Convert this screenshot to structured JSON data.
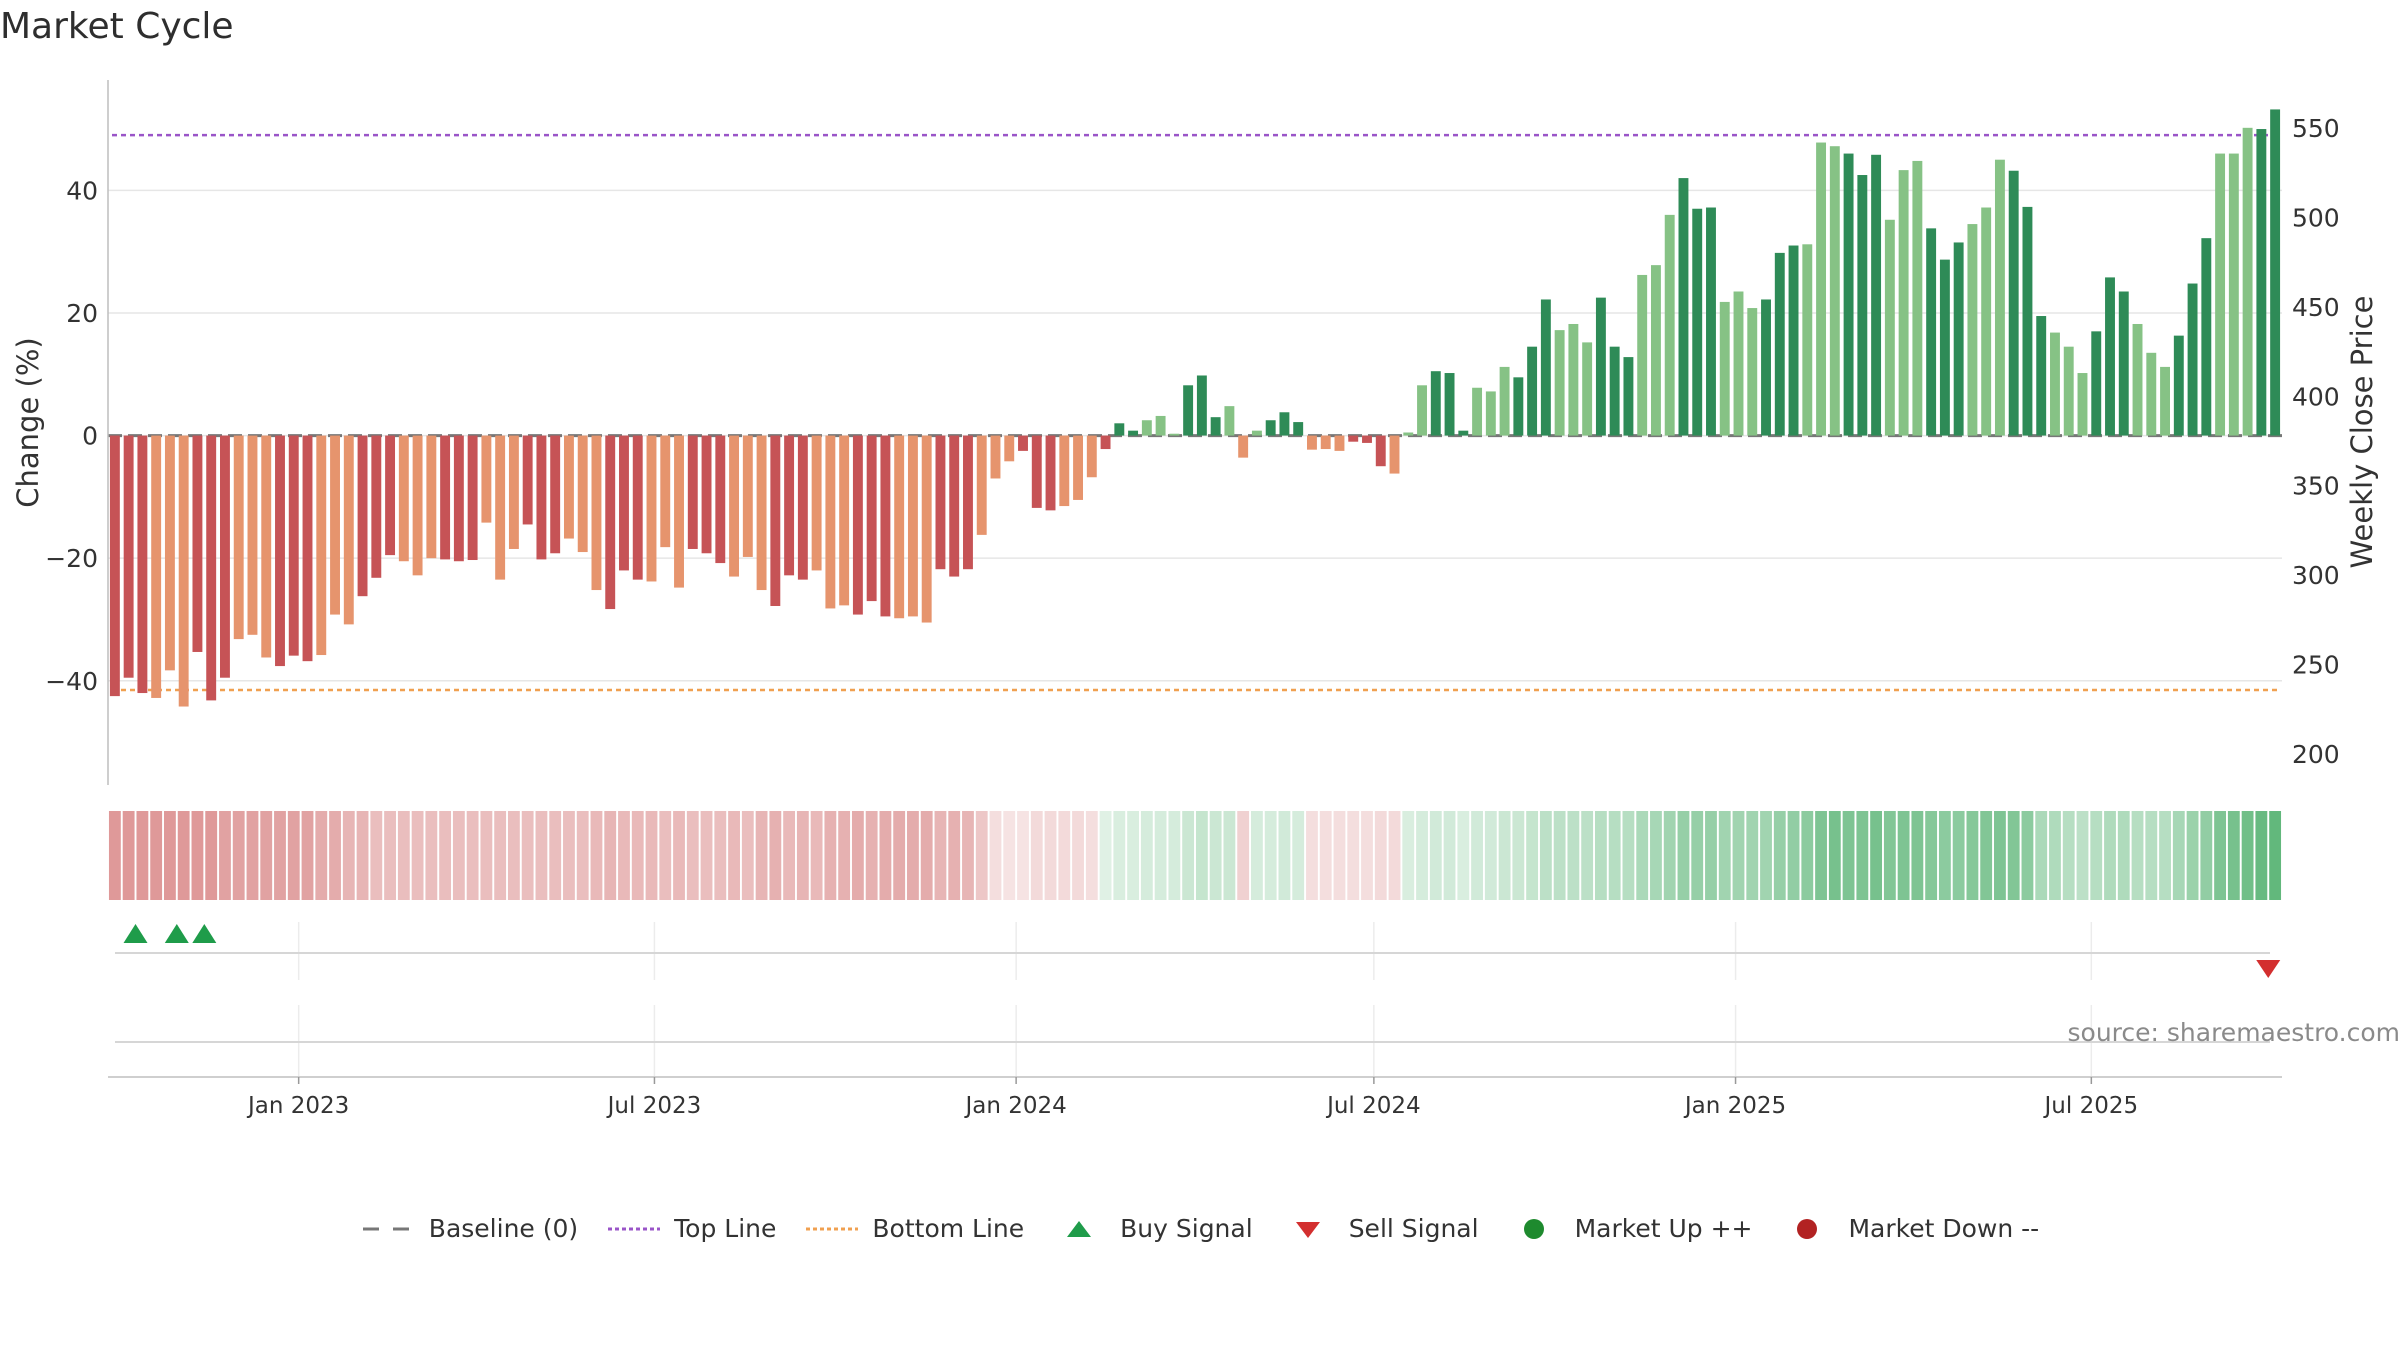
{
  "title": "Market Cycle",
  "source": "source: sharemaestro.com",
  "colors": {
    "red_dark": "#c65356",
    "red_light": "#e6946d",
    "green_dark": "#2e8b57",
    "green_light": "#86c285",
    "top_line": "#9a55c8",
    "bottom_line": "#f0a050",
    "baseline": "#777777",
    "buy": "#1f9c4a",
    "sell": "#d32f2f",
    "market_up": "#1e8a2e",
    "market_down": "#b22222"
  },
  "legend": [
    {
      "label": "Baseline (0)",
      "icon": "dash-line-icon"
    },
    {
      "label": "Top Line",
      "icon": "dotted-purple-line-icon"
    },
    {
      "label": "Bottom Line",
      "icon": "dotted-orange-line-icon"
    },
    {
      "label": "Buy Signal",
      "icon": "triangle-up-icon"
    },
    {
      "label": "Sell Signal",
      "icon": "triangle-down-icon"
    },
    {
      "label": "Market Up ++",
      "icon": "green-dot-icon"
    },
    {
      "label": "Market Down --",
      "icon": "red-dot-icon"
    }
  ],
  "chart_data": {
    "type": "bar",
    "xlabel": "",
    "ylabel": "Change (%)",
    "y2label": "Weekly Close Price",
    "ylim": [
      -57,
      58
    ],
    "y2lim": [
      200,
      550
    ],
    "yticks": [
      -40,
      -20,
      0,
      20,
      40
    ],
    "y2ticks": [
      200,
      250,
      300,
      350,
      400,
      450,
      500,
      550
    ],
    "x_start": "2022-09-26",
    "x_end": "2025-10-06",
    "xticks": [
      {
        "date": "2023-01-01",
        "label": "Jan 2023"
      },
      {
        "date": "2023-07-01",
        "label": "Jul 2023"
      },
      {
        "date": "2024-01-01",
        "label": "Jan 2024"
      },
      {
        "date": "2024-07-01",
        "label": "Jul 2024"
      },
      {
        "date": "2025-01-01",
        "label": "Jan 2025"
      },
      {
        "date": "2025-07-01",
        "label": "Jul 2025"
      }
    ],
    "top_line": 49,
    "bottom_line": -41.5,
    "grid": true,
    "legend_position": "bottom",
    "values": [
      -42.5,
      -39.5,
      -42,
      -42.8,
      -38.3,
      -44.2,
      -35.3,
      -43.2,
      -39.5,
      -33.2,
      -32.5,
      -36.2,
      -37.6,
      -35.9,
      -36.8,
      -35.8,
      -29.2,
      -30.8,
      -26.2,
      -23.2,
      -19.5,
      -20.5,
      -22.8,
      -20,
      -20.2,
      -20.5,
      -20.3,
      -14.2,
      -23.5,
      -18.5,
      -14.5,
      -20.2,
      -19.2,
      -16.8,
      -19,
      -25.2,
      -28.3,
      -22,
      -23.5,
      -23.8,
      -18.2,
      -24.8,
      -18.5,
      -19.2,
      -20.8,
      -23,
      -19.8,
      -25.2,
      -27.8,
      -22.8,
      -23.5,
      -22,
      -28.2,
      -27.7,
      -29.2,
      -27,
      -29.5,
      -29.8,
      -29.5,
      -30.5,
      -21.8,
      -23,
      -21.8,
      -16.2,
      -7,
      -4.2,
      -2.5,
      -11.8,
      -12.2,
      -11.5,
      -10.5,
      -6.8,
      -2.2,
      2,
      0.8,
      2.5,
      3.2,
      0.3,
      8.2,
      9.8,
      3,
      4.8,
      -3.6,
      0.8,
      2.5,
      3.8,
      2.2,
      -2.3,
      -2.2,
      -2.5,
      -1,
      -1.2,
      -5,
      -6.2,
      0.5,
      8.2,
      10.5,
      10.2,
      0.8,
      7.8,
      7.2,
      11.2,
      9.5,
      14.5,
      22.2,
      17.2,
      18.2,
      15.2,
      22.5,
      14.5,
      12.8,
      26.2,
      27.8,
      36,
      42,
      37,
      37.2,
      21.8,
      23.5,
      20.8,
      22.2,
      29.8,
      31,
      31.2,
      47.8,
      47.2,
      46,
      42.5,
      45.8,
      35.2,
      43.3,
      44.8,
      33.8,
      28.7,
      31.5,
      34.5,
      37.2,
      45,
      43.2,
      37.3,
      19.5,
      16.8,
      14.5,
      10.2,
      17,
      25.8,
      23.5,
      18.2,
      13.5,
      11.2,
      16.3,
      24.8,
      32.2,
      46,
      46,
      50.2,
      50,
      53.2
    ],
    "heat": [
      -0.55,
      -0.55,
      -0.55,
      -0.55,
      -0.55,
      -0.55,
      -0.55,
      -0.55,
      -0.5,
      -0.5,
      -0.5,
      -0.5,
      -0.5,
      -0.5,
      -0.5,
      -0.45,
      -0.45,
      -0.4,
      -0.4,
      -0.35,
      -0.35,
      -0.35,
      -0.35,
      -0.35,
      -0.35,
      -0.35,
      -0.35,
      -0.35,
      -0.35,
      -0.35,
      -0.35,
      -0.35,
      -0.35,
      -0.35,
      -0.35,
      -0.38,
      -0.4,
      -0.38,
      -0.38,
      -0.38,
      -0.35,
      -0.38,
      -0.35,
      -0.35,
      -0.35,
      -0.38,
      -0.35,
      -0.4,
      -0.42,
      -0.38,
      -0.4,
      -0.38,
      -0.42,
      -0.42,
      -0.45,
      -0.42,
      -0.45,
      -0.45,
      -0.45,
      -0.45,
      -0.4,
      -0.42,
      -0.4,
      -0.3,
      -0.18,
      -0.15,
      -0.15,
      -0.2,
      -0.2,
      -0.2,
      -0.2,
      -0.18,
      0.15,
      0.18,
      0.18,
      0.2,
      0.2,
      0.2,
      0.25,
      0.28,
      0.25,
      0.25,
      -0.25,
      0.2,
      0.2,
      0.22,
      0.2,
      -0.18,
      -0.18,
      -0.18,
      -0.18,
      -0.18,
      -0.2,
      -0.2,
      0.18,
      0.2,
      0.22,
      0.22,
      0.18,
      0.22,
      0.22,
      0.25,
      0.25,
      0.28,
      0.32,
      0.32,
      0.32,
      0.32,
      0.35,
      0.35,
      0.35,
      0.4,
      0.42,
      0.45,
      0.5,
      0.5,
      0.5,
      0.45,
      0.45,
      0.45,
      0.45,
      0.5,
      0.52,
      0.55,
      0.62,
      0.65,
      0.62,
      0.62,
      0.65,
      0.6,
      0.62,
      0.62,
      0.58,
      0.55,
      0.55,
      0.58,
      0.6,
      0.62,
      0.6,
      0.55,
      0.4,
      0.38,
      0.35,
      0.32,
      0.35,
      0.38,
      0.38,
      0.35,
      0.35,
      0.35,
      0.42,
      0.48,
      0.52,
      0.62,
      0.65,
      0.68,
      0.72,
      0.75
    ],
    "buy_signals": [
      "2022-10-10",
      "2022-10-31",
      "2022-11-14"
    ],
    "sell_signals": [
      "2025-09-29"
    ]
  }
}
